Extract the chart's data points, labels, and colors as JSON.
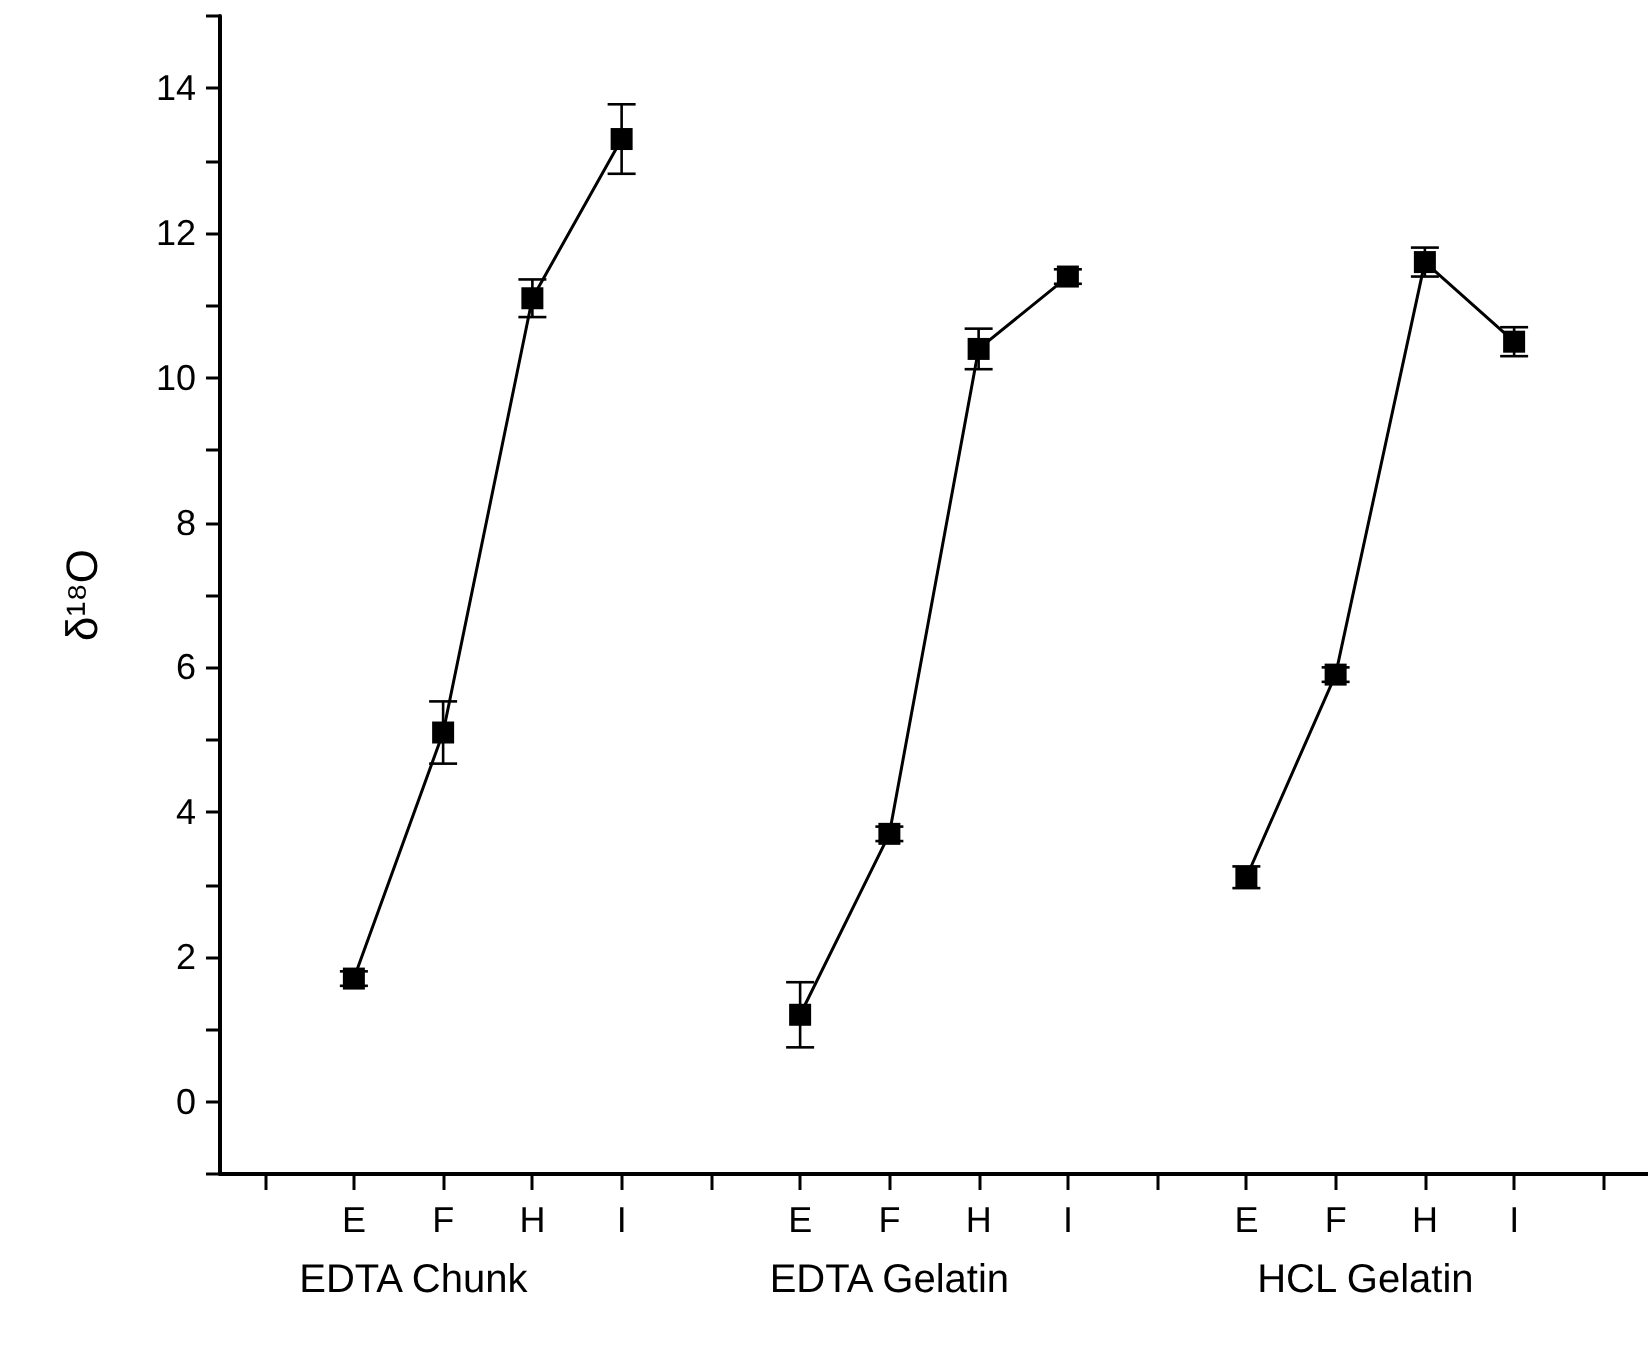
{
  "chart_data": {
    "type": "line",
    "ylabel": "δ¹⁸O",
    "categories": [
      null,
      "E",
      "F",
      "H",
      "I",
      null,
      "E",
      "F",
      "H",
      "I",
      null,
      "E",
      "F",
      "H",
      "I",
      null
    ],
    "series": [
      {
        "color": "#000000",
        "values": [
          null,
          1.7,
          5.1,
          11.1,
          13.3,
          null,
          1.2,
          3.7,
          10.4,
          11.4,
          null,
          3.1,
          5.9,
          11.6,
          10.5,
          null
        ],
        "errors": [
          null,
          0.1,
          0.43,
          0.26,
          0.48,
          null,
          0.45,
          0.1,
          0.28,
          0.1,
          null,
          0.15,
          0.1,
          0.2,
          0.2,
          null
        ]
      }
    ],
    "annotations": [
      "EDTA Chunk",
      "EDTA Gelatin",
      "HCL Gelatin"
    ],
    "ylim": [
      -1,
      15
    ],
    "yticks": [
      {
        "value": -1,
        "label": null
      },
      0,
      {
        "value": 1,
        "label": null
      },
      2,
      {
        "value": 3,
        "label": null
      },
      4,
      {
        "value": 5,
        "label": null
      },
      6,
      {
        "value": 7,
        "label": null
      },
      8,
      {
        "value": 9,
        "label": null
      },
      10,
      {
        "value": 11,
        "label": null
      },
      12,
      {
        "value": 13,
        "label": null
      },
      14,
      {
        "value": 15,
        "label": null
      }
    ],
    "marker": "square",
    "line_style": "solid",
    "grid": false
  }
}
